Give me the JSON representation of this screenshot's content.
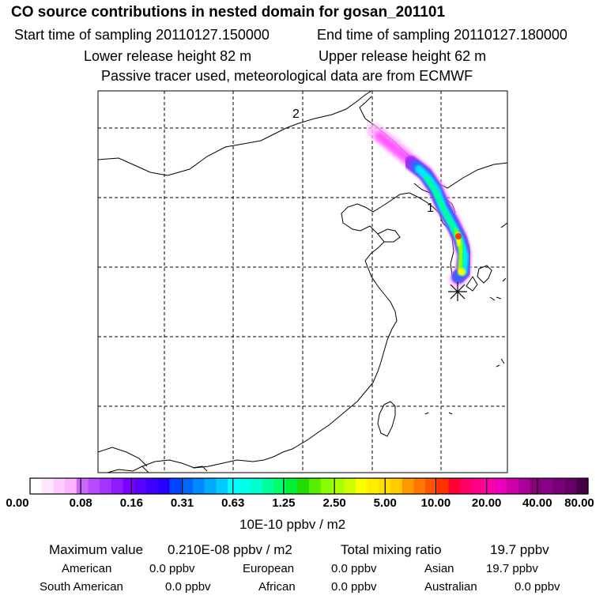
{
  "header": {
    "title": "CO  source contributions in nested domain for gosan_201101",
    "start_time": "Start time of sampling 20110127.150000",
    "end_time": "End time of sampling 20110127.180000",
    "lower_release": "Lower release height   82 m",
    "upper_release": "Upper release height   62 m",
    "tracer_note": "Passive tracer used, meteorological data are from ECMWF"
  },
  "map": {
    "markers": [
      {
        "label": "2"
      },
      {
        "label": "1"
      }
    ],
    "receptor_symbol": "asterisk-icon",
    "plume_colors": [
      "#ff33ff",
      "#9933ff",
      "#3366ff",
      "#00e5ff",
      "#00ff99",
      "#99ff00",
      "#ffff00",
      "#ff3300"
    ]
  },
  "colorbar": {
    "tick_labels": [
      "0.00",
      "0.08",
      "0.16",
      "0.31",
      "0.63",
      "1.25",
      "2.50",
      "5.00",
      "10.00",
      "20.00",
      "40.00",
      "80.00"
    ],
    "colors": [
      "#ffffff",
      "#ffe6ff",
      "#ffccff",
      "#ffb3ff",
      "#cc66ff",
      "#b84dff",
      "#a333ff",
      "#8f1aff",
      "#7a00ff",
      "#5c00ff",
      "#3d00ff",
      "#2600ff",
      "#0044ff",
      "#0066ff",
      "#0088ff",
      "#00aaff",
      "#00ccff",
      "#00ffff",
      "#00ffe6",
      "#00ffcc",
      "#00ff99",
      "#00ff66",
      "#00ee33",
      "#22dd00",
      "#55ee00",
      "#88ff00",
      "#aaff00",
      "#ccff00",
      "#ffff00",
      "#ffee00",
      "#ffdd00",
      "#ffcc00",
      "#ff9900",
      "#ff7700",
      "#ff5500",
      "#ff3300",
      "#ff0033",
      "#ff0066",
      "#ff0088",
      "#ff00aa",
      "#ee00bb",
      "#cc00aa",
      "#aa0099",
      "#880077",
      "#880088",
      "#770077",
      "#660066",
      "#440044"
    ],
    "units": "10E-10 ppbv / m2"
  },
  "summary": {
    "max_label": "Maximum value",
    "max_value": "0.210E-08 ppbv / m2",
    "total_label": "Total mixing ratio",
    "total_value": "19.7 ppbv",
    "regions": [
      {
        "name": "American",
        "value": "0.0 ppbv"
      },
      {
        "name": "European",
        "value": "0.0 ppbv"
      },
      {
        "name": "Asian",
        "value": "19.7 ppbv"
      },
      {
        "name": "South American",
        "value": "0.0 ppbv"
      },
      {
        "name": "African",
        "value": "0.0 ppbv"
      },
      {
        "name": "Australian",
        "value": "0.0 ppbv"
      }
    ]
  }
}
